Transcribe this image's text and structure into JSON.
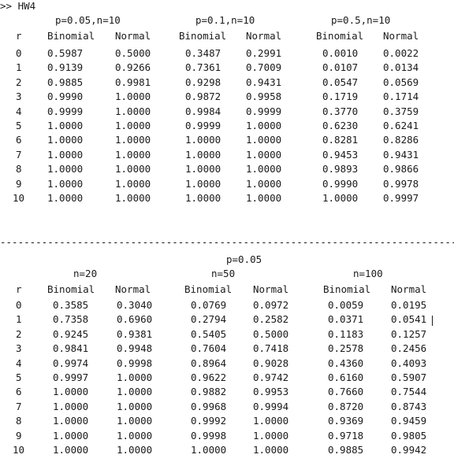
{
  "command": ">> HW4",
  "section1": {
    "groups": [
      {
        "header": "p=0.05,n=10"
      },
      {
        "header": "p=0.1,n=10"
      },
      {
        "header": "p=0.5,n=10"
      }
    ],
    "col_r": "r",
    "col_binomial": "Binomial",
    "col_normal": "Normal",
    "rows": [
      {
        "r": "0",
        "v": [
          "0.5987",
          "0.5000",
          "0.3487",
          "0.2991",
          "0.0010",
          "0.0022"
        ]
      },
      {
        "r": "1",
        "v": [
          "0.9139",
          "0.9266",
          "0.7361",
          "0.7009",
          "0.0107",
          "0.0134"
        ]
      },
      {
        "r": "2",
        "v": [
          "0.9885",
          "0.9981",
          "0.9298",
          "0.9431",
          "0.0547",
          "0.0569"
        ]
      },
      {
        "r": "3",
        "v": [
          "0.9990",
          "1.0000",
          "0.9872",
          "0.9958",
          "0.1719",
          "0.1714"
        ]
      },
      {
        "r": "4",
        "v": [
          "0.9999",
          "1.0000",
          "0.9984",
          "0.9999",
          "0.3770",
          "0.3759"
        ]
      },
      {
        "r": "5",
        "v": [
          "1.0000",
          "1.0000",
          "0.9999",
          "1.0000",
          "0.6230",
          "0.6241"
        ]
      },
      {
        "r": "6",
        "v": [
          "1.0000",
          "1.0000",
          "1.0000",
          "1.0000",
          "0.8281",
          "0.8286"
        ]
      },
      {
        "r": "7",
        "v": [
          "1.0000",
          "1.0000",
          "1.0000",
          "1.0000",
          "0.9453",
          "0.9431"
        ]
      },
      {
        "r": "8",
        "v": [
          "1.0000",
          "1.0000",
          "1.0000",
          "1.0000",
          "0.9893",
          "0.9866"
        ]
      },
      {
        "r": "9",
        "v": [
          "1.0000",
          "1.0000",
          "1.0000",
          "1.0000",
          "0.9990",
          "0.9978"
        ]
      },
      {
        "r": "10",
        "v": [
          "1.0000",
          "1.0000",
          "1.0000",
          "1.0000",
          "1.0000",
          "0.9997"
        ]
      }
    ]
  },
  "divider": "------------------------------------------------------------------------------------------------",
  "section2": {
    "title": "p=0.05",
    "groups": [
      {
        "header": "n=20"
      },
      {
        "header": "n=50"
      },
      {
        "header": "n=100"
      }
    ],
    "col_r": "r",
    "col_binomial": "Binomial",
    "col_normal": "Normal",
    "rows": [
      {
        "r": "0",
        "v": [
          "0.3585",
          "0.3040",
          "0.0769",
          "0.0972",
          "0.0059",
          "0.0195"
        ]
      },
      {
        "r": "1",
        "v": [
          "0.7358",
          "0.6960",
          "0.2794",
          "0.2582",
          "0.0371",
          "0.0541"
        ]
      },
      {
        "r": "2",
        "v": [
          "0.9245",
          "0.9381",
          "0.5405",
          "0.5000",
          "0.1183",
          "0.1257"
        ]
      },
      {
        "r": "3",
        "v": [
          "0.9841",
          "0.9948",
          "0.7604",
          "0.7418",
          "0.2578",
          "0.2456"
        ]
      },
      {
        "r": "4",
        "v": [
          "0.9974",
          "0.9998",
          "0.8964",
          "0.9028",
          "0.4360",
          "0.4093"
        ]
      },
      {
        "r": "5",
        "v": [
          "0.9997",
          "1.0000",
          "0.9622",
          "0.9742",
          "0.6160",
          "0.5907"
        ]
      },
      {
        "r": "6",
        "v": [
          "1.0000",
          "1.0000",
          "0.9882",
          "0.9953",
          "0.7660",
          "0.7544"
        ]
      },
      {
        "r": "7",
        "v": [
          "1.0000",
          "1.0000",
          "0.9968",
          "0.9994",
          "0.8720",
          "0.8743"
        ]
      },
      {
        "r": "8",
        "v": [
          "1.0000",
          "1.0000",
          "0.9992",
          "1.0000",
          "0.9369",
          "0.9459"
        ]
      },
      {
        "r": "9",
        "v": [
          "1.0000",
          "1.0000",
          "0.9998",
          "1.0000",
          "0.9718",
          "0.9805"
        ]
      },
      {
        "r": "10",
        "v": [
          "1.0000",
          "1.0000",
          "1.0000",
          "1.0000",
          "0.9885",
          "0.9942"
        ]
      }
    ]
  }
}
